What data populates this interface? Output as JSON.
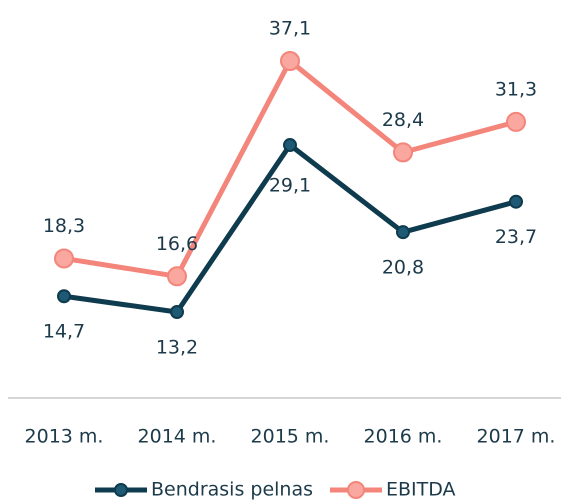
{
  "chart_data": {
    "type": "line",
    "categories": [
      "2013 m.",
      "2014 m.",
      "2015 m.",
      "2016 m.",
      "2017 m."
    ],
    "series": [
      {
        "name": "Bendrasis pelnas",
        "color": "#0e3b4e",
        "values": [
          14.7,
          13.2,
          29.1,
          20.8,
          23.7
        ],
        "value_labels": [
          "14,7",
          "13,2",
          "29,1",
          "20,8",
          "23,7"
        ]
      },
      {
        "name": "EBITDA",
        "color": "#f4857b",
        "values": [
          18.3,
          16.6,
          37.1,
          28.4,
          31.3
        ],
        "value_labels": [
          "18,3",
          "16,6",
          "37,1",
          "28,4",
          "31,3"
        ]
      }
    ]
  }
}
